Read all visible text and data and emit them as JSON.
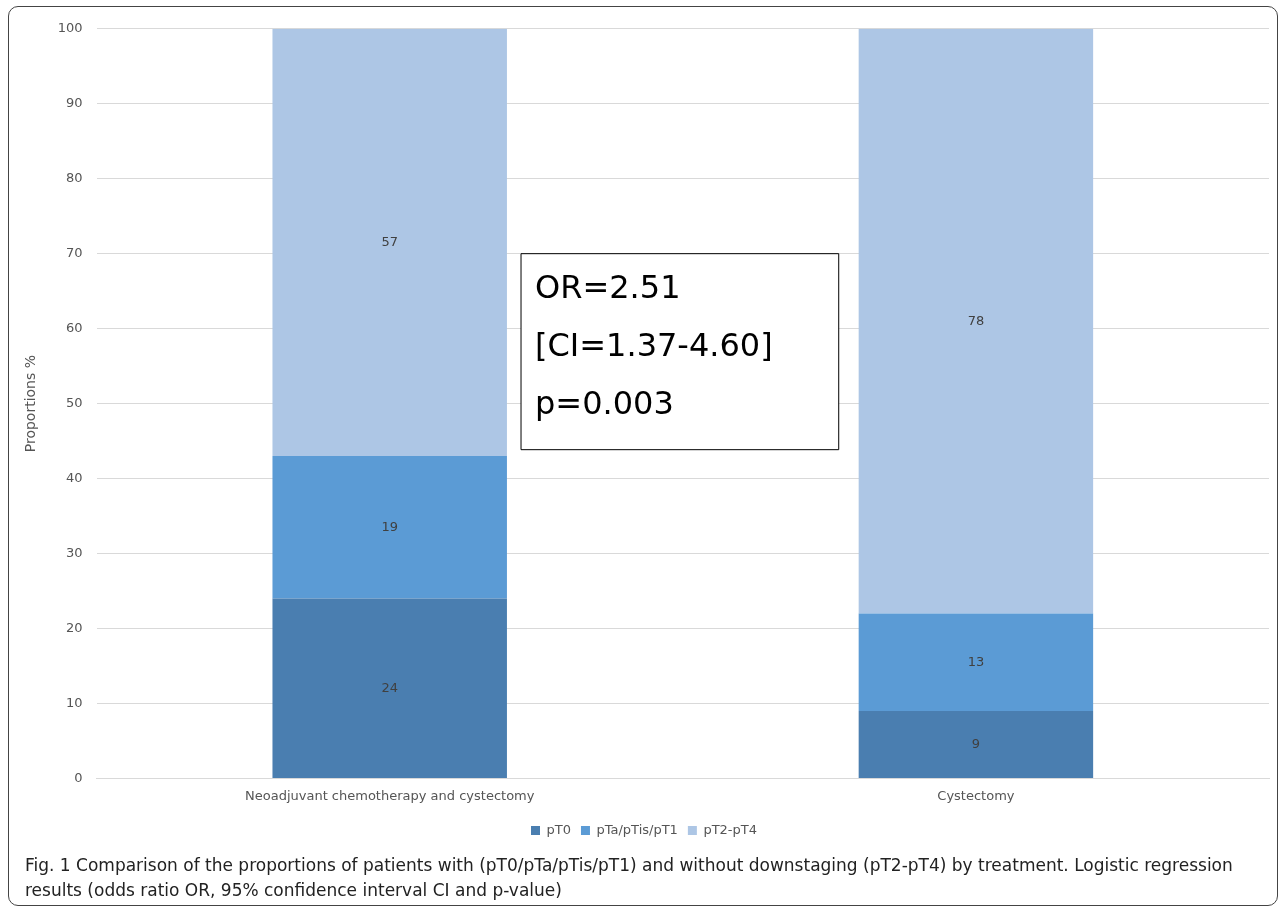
{
  "chart_data": {
    "type": "bar",
    "stacked": true,
    "categories": [
      "Neoadjuvant chemotherapy and cystectomy",
      "Cystectomy"
    ],
    "series": [
      {
        "name": "pT0",
        "color": "#4a7eb0",
        "values": [
          24,
          9
        ]
      },
      {
        "name": "pTa/pTis/pT1",
        "color": "#5b9bd5",
        "values": [
          19,
          13
        ]
      },
      {
        "name": "pT2-pT4",
        "color": "#adc6e5",
        "values": [
          57,
          78
        ]
      }
    ],
    "ylabel": "Proportions %",
    "ylim": [
      0,
      100
    ],
    "yticks": [
      0,
      10,
      20,
      30,
      40,
      50,
      60,
      70,
      80,
      90,
      100
    ],
    "grid": "y",
    "legend": "bottom",
    "data_labels": true,
    "annotations": [
      "OR=2.51",
      "[CI=1.37-4.60]",
      "p=0.003",
      "Fig. 1 Comparison of the proportions of patients with (pT0/pTa/pTis/pT1) and without downstaging (pT2-pT4) by treatment. Logistic regression results (odds ratio OR, 95% confidence interval CI and p-value)"
    ]
  }
}
